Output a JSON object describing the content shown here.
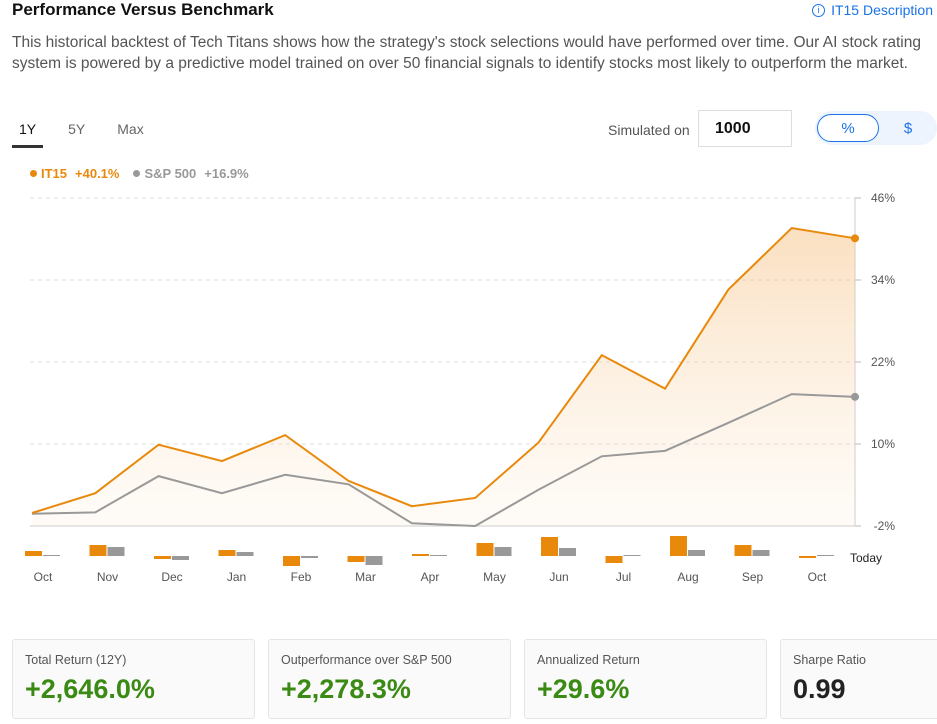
{
  "header": {
    "title": "Performance Versus Benchmark",
    "description_link": "IT15 Description",
    "info_icon": "ⓘ"
  },
  "intro": "This historical backtest of Tech Titans shows how the strategy's stock selections would have performed over time. Our AI stock rating system is powered by a predictive model trained on over 50 financial signals to identify stocks most likely to outperform the market.",
  "tabs": [
    {
      "label": "1Y",
      "active": true
    },
    {
      "label": "5Y"
    },
    {
      "label": "Max"
    }
  ],
  "simulation": {
    "label": "Simulated on",
    "value": "1000"
  },
  "unit_toggle": {
    "percent": "%",
    "dollar": "$",
    "selected": "%"
  },
  "colors": {
    "it15": "#e8890c",
    "sp500": "#999999",
    "positive": "#3a8a14"
  },
  "chart_data": {
    "type": "line",
    "legend": [
      {
        "name": "IT15",
        "value": "+40.1%"
      },
      {
        "name": "S&P 500",
        "value": "+16.9%"
      }
    ],
    "x": [
      "Oct",
      "Nov",
      "Dec",
      "Jan",
      "Feb",
      "Mar",
      "Apr",
      "May",
      "Jun",
      "Jul",
      "Aug",
      "Sep",
      "Oct",
      "Today"
    ],
    "series": [
      {
        "name": "IT15",
        "values": [
          -0.1,
          2.8,
          9.9,
          7.5,
          11.3,
          4.6,
          0.9,
          2.1,
          10.2,
          23.0,
          18.1,
          32.6,
          41.6,
          40.1
        ]
      },
      {
        "name": "S&P 500",
        "values": [
          -0.2,
          0.0,
          5.3,
          2.8,
          5.5,
          4.1,
          -1.6,
          -2.0,
          3.3,
          8.2,
          9.0,
          13.1,
          17.3,
          16.9
        ]
      }
    ],
    "ylim": [
      -2,
      46
    ],
    "yticks": [
      "46%",
      "34%",
      "22%",
      "10%",
      "-2%"
    ],
    "ytick_values": [
      46,
      34,
      22,
      10,
      -2
    ],
    "grid": true,
    "legend_position": "top-left",
    "monthly_bars": {
      "categories": [
        "Oct",
        "Nov",
        "Dec",
        "Jan",
        "Feb",
        "Mar",
        "Apr",
        "May",
        "Jun",
        "Jul",
        "Aug",
        "Sep",
        "Oct"
      ],
      "end_label": "Today",
      "series": [
        {
          "name": "IT15",
          "values": [
            2.5,
            5.5,
            -1.5,
            3,
            -5,
            -3,
            1,
            6.5,
            9.5,
            -3.5,
            10,
            5.5,
            -1
          ]
        },
        {
          "name": "S&P 500",
          "values": [
            0.3,
            4.5,
            -2,
            2,
            -1,
            -4.5,
            0.3,
            4.5,
            4,
            0.5,
            3,
            3,
            0.5
          ]
        }
      ]
    }
  },
  "stats": [
    {
      "label": "Total Return (12Y)",
      "value": "+2,646.0%"
    },
    {
      "label": "Outperformance over S&P 500",
      "value": "+2,278.3%"
    },
    {
      "label": "Annualized Return",
      "value": "+29.6%"
    },
    {
      "label": "Sharpe Ratio",
      "value": "0.99"
    }
  ]
}
